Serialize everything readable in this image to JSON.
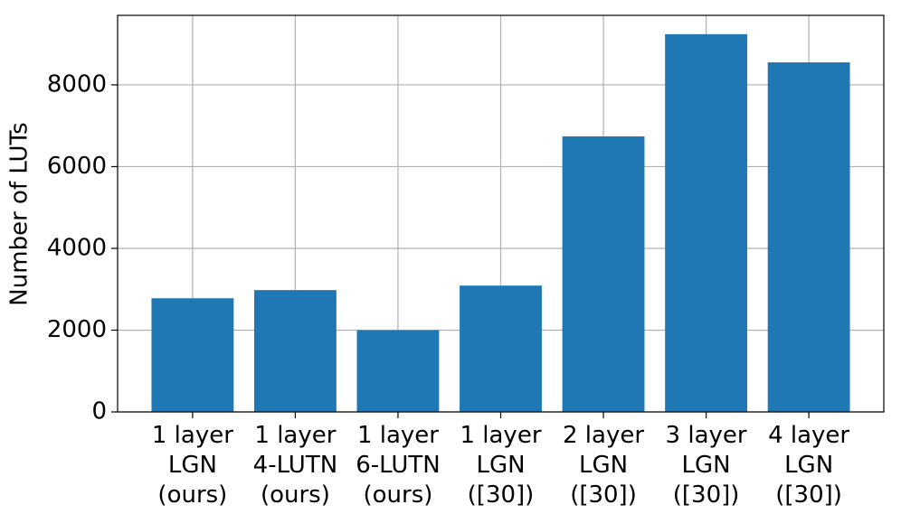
{
  "chart_data": {
    "type": "bar",
    "ylabel": "Number of  LUTs",
    "categories": [
      "1 layer\nLGN\n(ours)",
      "1 layer\n4-LUTN\n(ours)",
      "1 layer\n6-LUTN\n(ours)",
      "1 layer\nLGN\n([30])",
      "2 layer\nLGN\n([30])",
      "3 layer\nLGN\n([30])",
      "4 layer\nLGN\n([30])"
    ],
    "values": [
      2780,
      2980,
      2000,
      3090,
      6740,
      9240,
      8550
    ],
    "color": "#1f77b4",
    "ylim": [
      0,
      9700
    ],
    "yticks": [
      0,
      2000,
      4000,
      6000,
      8000
    ],
    "grid": true
  }
}
